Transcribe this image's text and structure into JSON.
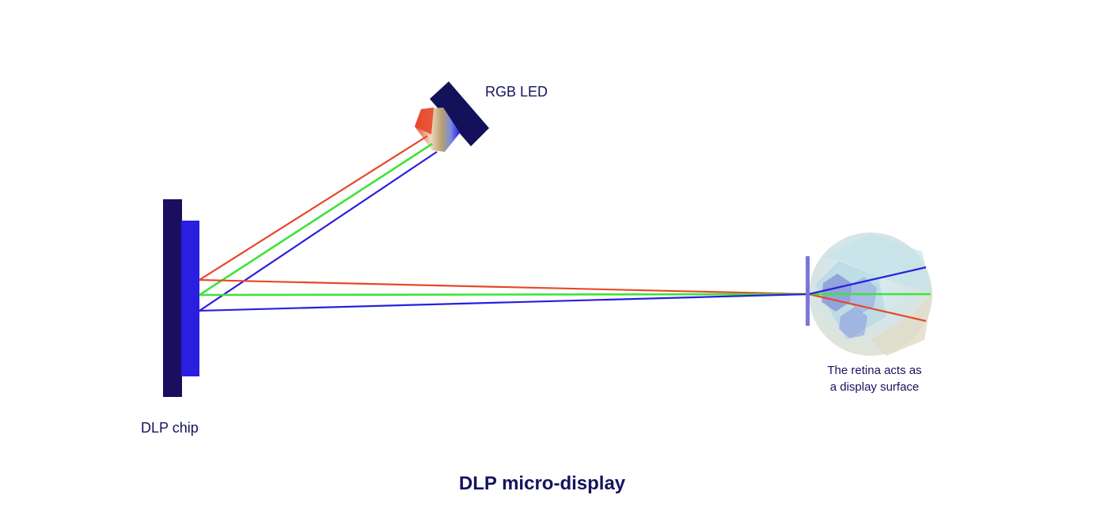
{
  "title": "DLP micro-display",
  "labels": {
    "rgb_led": "RGB LED",
    "dlp_chip": "DLP chip",
    "retina_line1": "The retina acts as",
    "retina_line2": "a display surface"
  },
  "colors": {
    "text": "#16145e",
    "chip_back": "#1a0f5e",
    "chip_front": "#2a1ee0",
    "led_housing": "#13115a",
    "beam_red": "#e8472a",
    "beam_green": "#3ee33a",
    "beam_blue": "#2a1ee0",
    "lens": "#7b77d9",
    "eye": "#c9dde6"
  },
  "beams": [
    "red",
    "green",
    "blue"
  ]
}
